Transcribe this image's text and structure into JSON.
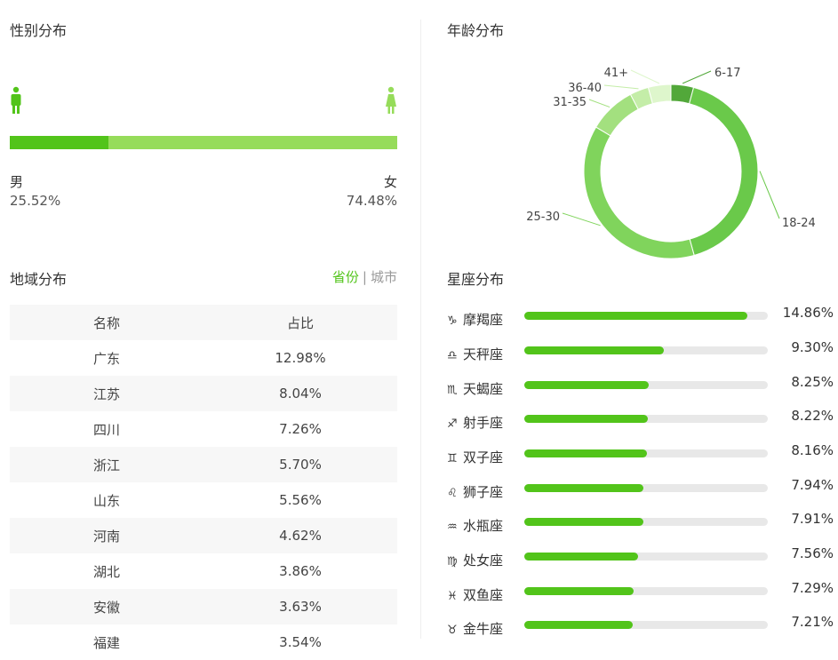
{
  "gender": {
    "title": "性别分布",
    "male_label": "男",
    "male_value": "25.52%",
    "male_fraction": 0.2552,
    "female_label": "女",
    "female_value": "74.48%",
    "male_color": "#52c41a",
    "female_color": "#96dc5a"
  },
  "age": {
    "title": "年龄分布",
    "segments": [
      {
        "label": "6-17",
        "value": 4.2,
        "color": "#52a83a"
      },
      {
        "label": "18-24",
        "value": 41.5,
        "color": "#6ac94a"
      },
      {
        "label": "25-30",
        "value": 37.8,
        "color": "#80d45c"
      },
      {
        "label": "31-35",
        "value": 8.8,
        "color": "#a3e07f"
      },
      {
        "label": "36-40",
        "value": 3.5,
        "color": "#c4eda8"
      },
      {
        "label": "41+",
        "value": 4.2,
        "color": "#def6cc"
      }
    ]
  },
  "region": {
    "title": "地域分布",
    "toggle_active": "省份",
    "toggle_separator": "|",
    "toggle_inactive": "城市",
    "header": {
      "name": "名称",
      "share": "占比"
    },
    "rows": [
      {
        "name": "广东",
        "share": "12.98%"
      },
      {
        "name": "江苏",
        "share": "8.04%"
      },
      {
        "name": "四川",
        "share": "7.26%"
      },
      {
        "name": "浙江",
        "share": "5.70%"
      },
      {
        "name": "山东",
        "share": "5.56%"
      },
      {
        "name": "河南",
        "share": "4.62%"
      },
      {
        "name": "湖北",
        "share": "3.86%"
      },
      {
        "name": "安徽",
        "share": "3.63%"
      },
      {
        "name": "福建",
        "share": "3.54%"
      }
    ]
  },
  "zodiac": {
    "title": "星座分布",
    "max_value": 16.2,
    "items": [
      {
        "symbol": "♑",
        "name": "摩羯座",
        "value": 14.86,
        "label": "14.86%"
      },
      {
        "symbol": "♎",
        "name": "天秤座",
        "value": 9.3,
        "label": "9.30%"
      },
      {
        "symbol": "♏",
        "name": "天蝎座",
        "value": 8.25,
        "label": "8.25%"
      },
      {
        "symbol": "♐",
        "name": "射手座",
        "value": 8.22,
        "label": "8.22%"
      },
      {
        "symbol": "♊",
        "name": "双子座",
        "value": 8.16,
        "label": "8.16%"
      },
      {
        "symbol": "♌",
        "name": "狮子座",
        "value": 7.94,
        "label": "7.94%"
      },
      {
        "symbol": "♒",
        "name": "水瓶座",
        "value": 7.91,
        "label": "7.91%"
      },
      {
        "symbol": "♍",
        "name": "处女座",
        "value": 7.56,
        "label": "7.56%"
      },
      {
        "symbol": "♓",
        "name": "双鱼座",
        "value": 7.29,
        "label": "7.29%"
      },
      {
        "symbol": "♉",
        "name": "金牛座",
        "value": 7.21,
        "label": "7.21%"
      }
    ]
  }
}
